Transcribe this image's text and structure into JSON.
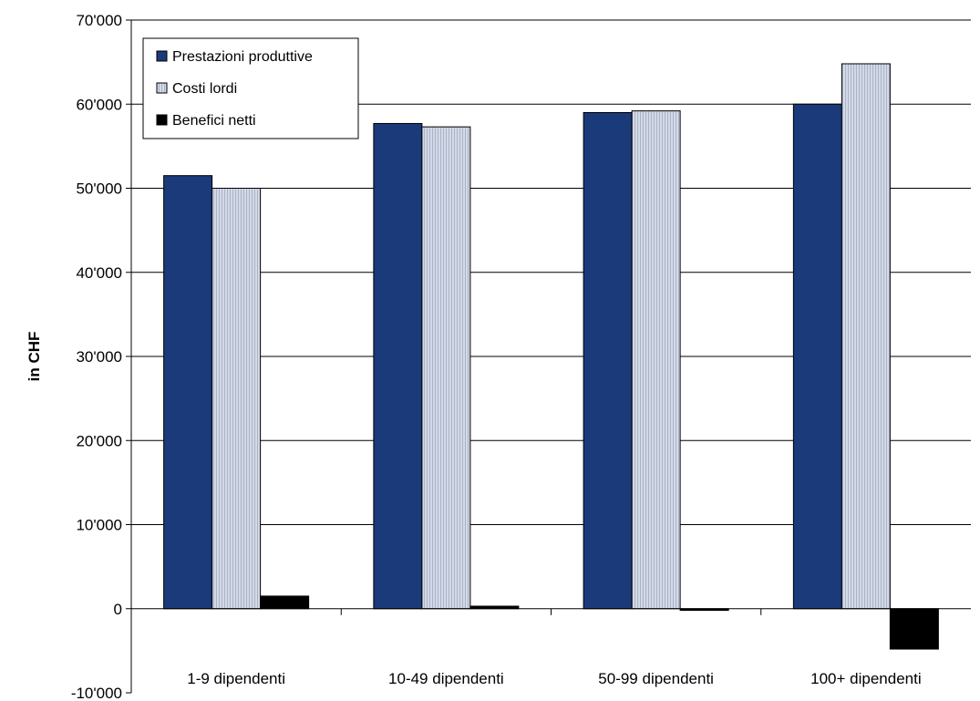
{
  "chart_data": {
    "type": "bar",
    "title": "",
    "xlabel": "",
    "ylabel": "in CHF",
    "ylim": [
      -10000,
      70000
    ],
    "yticks": [
      -10000,
      0,
      10000,
      20000,
      30000,
      40000,
      50000,
      60000,
      70000
    ],
    "ytick_labels": [
      "-10'000",
      "0",
      "10'000",
      "20'000",
      "30'000",
      "40'000",
      "50'000",
      "60'000",
      "70'000"
    ],
    "grid": true,
    "legend_position": "top-left",
    "categories": [
      "1-9 dipendenti",
      "10-49 dipendenti",
      "50-99 dipendenti",
      "100+ dipendenti"
    ],
    "series": [
      {
        "name": "Prestazioni produttive",
        "color": "#1a3a7a",
        "pattern": "solid",
        "values": [
          51500,
          57700,
          59000,
          60000
        ]
      },
      {
        "name": "Costi lordi",
        "color": "#c3cbdb",
        "pattern": "vertical-stripes",
        "values": [
          50000,
          57300,
          59200,
          64800
        ]
      },
      {
        "name": "Benefici netti",
        "color": "#000000",
        "pattern": "solid",
        "values": [
          1500,
          300,
          -200,
          -4800
        ]
      }
    ]
  }
}
